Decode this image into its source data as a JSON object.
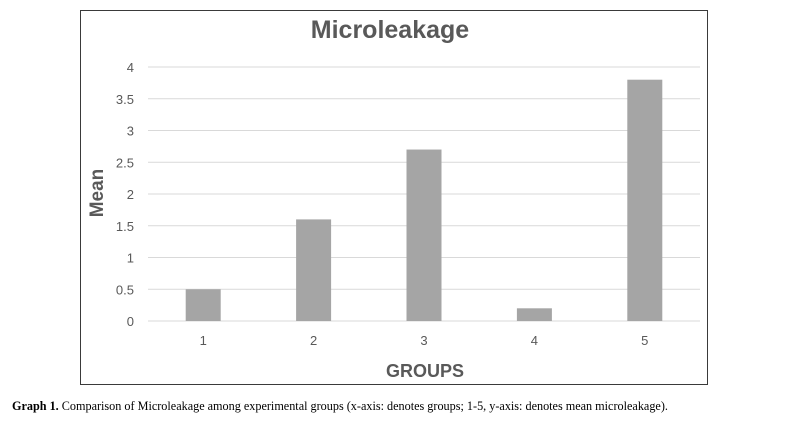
{
  "chart_data": {
    "type": "bar",
    "title": "Microleakage",
    "xlabel": "GROUPS",
    "ylabel": "Mean",
    "categories": [
      "1",
      "2",
      "3",
      "4",
      "5"
    ],
    "values": [
      0.5,
      1.6,
      2.7,
      0.2,
      3.8
    ],
    "ylim": [
      0,
      4
    ],
    "yticks": [
      "0",
      "0.5",
      "1",
      "1.5",
      "2",
      "2.5",
      "3",
      "3.5",
      "4"
    ],
    "grid": true,
    "legend": "none",
    "bar_color": "#a5a5a5",
    "grid_color": "#d9d9d9"
  },
  "caption": {
    "label": "Graph 1.",
    "text": "Comparison of Microleakage among experimental groups (x-axis: denotes groups; 1-5, y-axis: denotes mean microleakage)."
  }
}
